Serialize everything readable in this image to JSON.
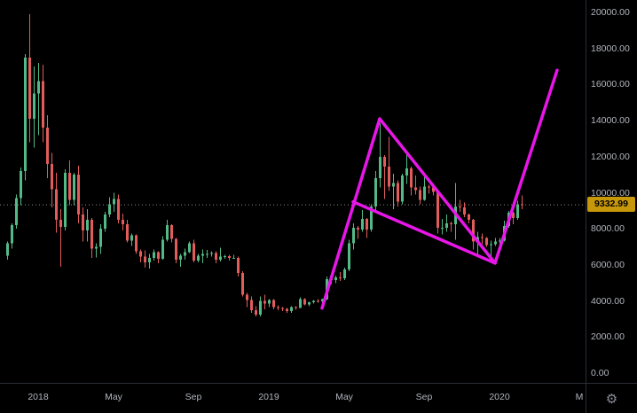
{
  "chart_data": {
    "type": "candlestick",
    "title": "",
    "last_price": 9332.99,
    "last_price_label": "9332.99",
    "y_axis": {
      "min": 0,
      "max": 20000,
      "tick_step": 2000,
      "ticks": [
        {
          "value": 20000,
          "label": "20000.00"
        },
        {
          "value": 18000,
          "label": "18000.00"
        },
        {
          "value": 16000,
          "label": "16000.00"
        },
        {
          "value": 14000,
          "label": "14000.00"
        },
        {
          "value": 12000,
          "label": "12000.00"
        },
        {
          "value": 10000,
          "label": "10000.00"
        },
        {
          "value": 8000,
          "label": "8000.00"
        },
        {
          "value": 6000,
          "label": "6000.00"
        },
        {
          "value": 4000,
          "label": "4000.00"
        },
        {
          "value": 2000,
          "label": "2000.00"
        },
        {
          "value": 0,
          "label": "0.00"
        }
      ]
    },
    "x_axis": {
      "labels": [
        {
          "text": "2018",
          "index": 7
        },
        {
          "text": "May",
          "index": 24
        },
        {
          "text": "Sep",
          "index": 42
        },
        {
          "text": "2019",
          "index": 59
        },
        {
          "text": "May",
          "index": 76
        },
        {
          "text": "Sep",
          "index": 94
        },
        {
          "text": "2020",
          "index": 111
        },
        {
          "text": "M",
          "index": 129
        }
      ]
    },
    "candles": [
      [
        6500,
        7300,
        6300,
        7200
      ],
      [
        7200,
        8300,
        6900,
        8200
      ],
      [
        8200,
        9900,
        8000,
        9700
      ],
      [
        9700,
        11400,
        9300,
        11200
      ],
      [
        11200,
        17700,
        10700,
        17500
      ],
      [
        17500,
        19900,
        12800,
        14100
      ],
      [
        14100,
        17000,
        12500,
        15500
      ],
      [
        15500,
        17200,
        13200,
        16200
      ],
      [
        16200,
        17100,
        12800,
        13600
      ],
      [
        13600,
        14300,
        10800,
        11600
      ],
      [
        11600,
        12200,
        9200,
        10200
      ],
      [
        10200,
        11100,
        7800,
        8500
      ],
      [
        8500,
        9100,
        5900,
        8100
      ],
      [
        8100,
        11300,
        7900,
        11100
      ],
      [
        11100,
        11800,
        9300,
        9600
      ],
      [
        9600,
        11100,
        9300,
        11000
      ],
      [
        11000,
        11500,
        8300,
        8800
      ],
      [
        8800,
        9200,
        7300,
        7900
      ],
      [
        7900,
        9100,
        7300,
        8500
      ],
      [
        8500,
        8600,
        6400,
        6900
      ],
      [
        6900,
        7200,
        6420,
        7000
      ],
      [
        7000,
        8250,
        6600,
        8000
      ],
      [
        8000,
        8950,
        7850,
        8800
      ],
      [
        8800,
        9750,
        8650,
        9350
      ],
      [
        9350,
        9990,
        8950,
        9650
      ],
      [
        9650,
        9900,
        8300,
        8500
      ],
      [
        8500,
        8850,
        7900,
        8250
      ],
      [
        8250,
        8500,
        7250,
        7350
      ],
      [
        7350,
        7750,
        7050,
        7650
      ],
      [
        7650,
        7700,
        6600,
        6750
      ],
      [
        6750,
        6850,
        6150,
        6450
      ],
      [
        6450,
        6800,
        5850,
        6150
      ],
      [
        6150,
        6600,
        5800,
        6400
      ],
      [
        6400,
        6850,
        6250,
        6700
      ],
      [
        6700,
        6750,
        6100,
        6350
      ],
      [
        6350,
        7600,
        6300,
        7400
      ],
      [
        7400,
        8500,
        7300,
        8200
      ],
      [
        8200,
        8250,
        7250,
        7450
      ],
      [
        7450,
        7500,
        6100,
        6300
      ],
      [
        6300,
        6600,
        5900,
        6500
      ],
      [
        6500,
        6900,
        6300,
        6700
      ],
      [
        6700,
        7300,
        6650,
        7200
      ],
      [
        7200,
        7400,
        6150,
        6250
      ],
      [
        6250,
        6600,
        6150,
        6500
      ],
      [
        6500,
        6850,
        6100,
        6600
      ],
      [
        6600,
        6820,
        6400,
        6600
      ],
      [
        6600,
        6750,
        6450,
        6650
      ],
      [
        6650,
        6750,
        6100,
        6300
      ],
      [
        6300,
        6950,
        6200,
        6450
      ],
      [
        6450,
        6550,
        6350,
        6480
      ],
      [
        6480,
        6550,
        6250,
        6400
      ],
      [
        6400,
        6570,
        6330,
        6400
      ],
      [
        6400,
        6450,
        5350,
        5550
      ],
      [
        5550,
        5650,
        4250,
        4350
      ],
      [
        4350,
        4450,
        3650,
        4050
      ],
      [
        4050,
        4250,
        3350,
        3500
      ],
      [
        3500,
        3700,
        3150,
        3250
      ],
      [
        3250,
        4250,
        3150,
        4000
      ],
      [
        4000,
        4350,
        3550,
        3850
      ],
      [
        3850,
        4100,
        3650,
        4050
      ],
      [
        4050,
        4100,
        3550,
        3650
      ],
      [
        3650,
        3750,
        3500,
        3600
      ],
      [
        3600,
        3650,
        3450,
        3570
      ],
      [
        3570,
        3600,
        3350,
        3450
      ],
      [
        3450,
        3720,
        3350,
        3650
      ],
      [
        3650,
        3700,
        3520,
        3620
      ],
      [
        3620,
        4200,
        3600,
        4100
      ],
      [
        4100,
        4150,
        3750,
        3820
      ],
      [
        3820,
        3950,
        3700,
        3920
      ],
      [
        3920,
        4050,
        3850,
        4000
      ],
      [
        4000,
        4100,
        3900,
        3980
      ],
      [
        3980,
        4120,
        3880,
        4100
      ],
      [
        4100,
        5350,
        4050,
        5200
      ],
      [
        5200,
        5450,
        4950,
        5150
      ],
      [
        5150,
        5400,
        5000,
        5300
      ],
      [
        5300,
        5600,
        5100,
        5250
      ],
      [
        5250,
        5850,
        5150,
        5750
      ],
      [
        5750,
        7400,
        5650,
        7200
      ],
      [
        7200,
        8300,
        6850,
        8050
      ],
      [
        8050,
        8150,
        7450,
        7950
      ],
      [
        7950,
        9050,
        7850,
        8550
      ],
      [
        8550,
        8600,
        7500,
        7950
      ],
      [
        7950,
        9350,
        7850,
        9250
      ],
      [
        9250,
        11200,
        9050,
        10800
      ],
      [
        10800,
        13850,
        10300,
        12000
      ],
      [
        12000,
        12100,
        9650,
        11450
      ],
      [
        11450,
        13100,
        10100,
        10350
      ],
      [
        10350,
        11050,
        9100,
        10550
      ],
      [
        10550,
        10700,
        9250,
        9500
      ],
      [
        9500,
        11050,
        9350,
        10950
      ],
      [
        10950,
        12300,
        10500,
        11350
      ],
      [
        11350,
        11450,
        9850,
        10300
      ],
      [
        10300,
        10950,
        9900,
        10150
      ],
      [
        10150,
        10350,
        9350,
        9600
      ],
      [
        9600,
        10950,
        9550,
        10350
      ],
      [
        10350,
        10450,
        9950,
        10300
      ],
      [
        10300,
        10350,
        9850,
        10050
      ],
      [
        10050,
        10100,
        7750,
        8050
      ],
      [
        8050,
        8550,
        7700,
        8050
      ],
      [
        8050,
        8800,
        7850,
        8300
      ],
      [
        8300,
        8400,
        7850,
        8250
      ],
      [
        8250,
        10550,
        7400,
        9250
      ],
      [
        9250,
        9600,
        8950,
        9200
      ],
      [
        9200,
        9450,
        8650,
        8800
      ],
      [
        8800,
        8850,
        8300,
        8500
      ],
      [
        8500,
        8550,
        6850,
        7300
      ],
      [
        7300,
        7850,
        6500,
        7550
      ],
      [
        7550,
        7750,
        7150,
        7500
      ],
      [
        7500,
        7550,
        7000,
        7100
      ],
      [
        7100,
        7350,
        6450,
        7150
      ],
      [
        7150,
        7500,
        7050,
        7300
      ],
      [
        7300,
        7500,
        7150,
        7350
      ],
      [
        7350,
        8450,
        7300,
        8150
      ],
      [
        8150,
        9000,
        8050,
        8900
      ],
      [
        8900,
        8950,
        8250,
        8600
      ],
      [
        8600,
        9550,
        8500,
        9350
      ],
      [
        9350,
        9850,
        9100,
        9333
      ]
    ],
    "trend_lines": [
      {
        "from": {
          "i": 71,
          "price": 3600
        },
        "to": {
          "i": 84,
          "price": 14100
        }
      },
      {
        "from": {
          "i": 84,
          "price": 14100
        },
        "to": {
          "i": 110,
          "price": 6100
        }
      },
      {
        "from": {
          "i": 78,
          "price": 9500
        },
        "to": {
          "i": 110,
          "price": 6100
        }
      },
      {
        "from": {
          "i": 110,
          "price": 6100
        },
        "to": {
          "i": 124,
          "price": 16800
        }
      }
    ],
    "colors": {
      "background": "#000000",
      "up": "#53b987",
      "down": "#e25c5c",
      "trend": "#e816e8",
      "last_price_bg": "#c7980a",
      "axis_text": "#b2b5be",
      "dotted_line": "#b0b0b0"
    }
  },
  "icons": {
    "settings_gear": "⚙"
  }
}
